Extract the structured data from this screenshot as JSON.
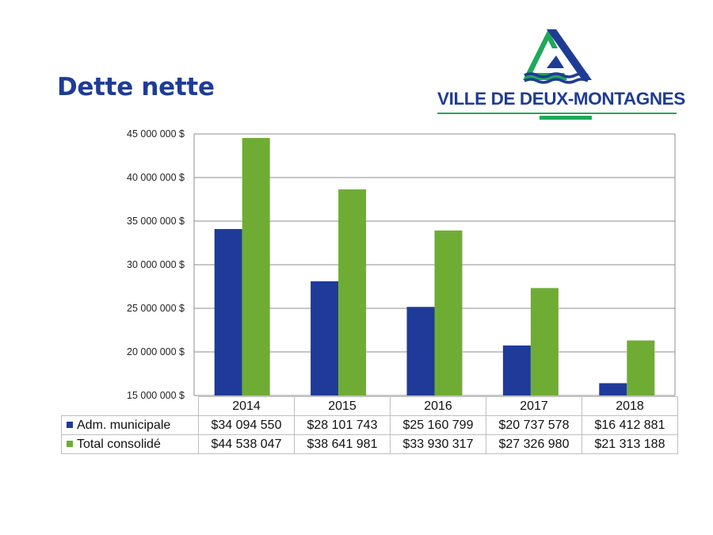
{
  "slide": {
    "title": "Dette nette"
  },
  "logo": {
    "text": "VILLE DE DEUX-MONTAGNES"
  },
  "colors": {
    "title": "#1f3c95",
    "series1": "#1f3a99",
    "series2": "#6fac34",
    "logo_green": "#1fa85a",
    "logo_blue": "#1f3c95"
  },
  "chart_data": {
    "type": "bar",
    "title": "",
    "xlabel": "",
    "ylabel": "",
    "categories": [
      "2014",
      "2015",
      "2016",
      "2017",
      "2018"
    ],
    "series": [
      {
        "name": "Adm. municipale",
        "values": [
          34094550,
          28101743,
          25160799,
          20737578,
          16412881
        ],
        "labels": [
          "$34 094 550",
          "$28 101 743",
          "$25 160 799",
          "$20 737 578",
          "$16 412 881"
        ],
        "color": "#1f3a99"
      },
      {
        "name": "Total consolidé",
        "values": [
          44538047,
          38641981,
          33930317,
          27326980,
          21313188
        ],
        "labels": [
          "$44 538 047",
          "$38 641 981",
          "$33 930 317",
          "$27 326 980",
          "$21 313 188"
        ],
        "color": "#6fac34"
      }
    ],
    "ylim": [
      15000000,
      45000000
    ],
    "yticks": [
      15000000,
      20000000,
      25000000,
      30000000,
      35000000,
      40000000,
      45000000
    ],
    "ytick_labels": [
      "15 000 000 $",
      "20 000 000 $",
      "25 000 000 $",
      "30 000 000 $",
      "35 000 000 $",
      "40 000 000 $",
      "45 000 000 $"
    ],
    "grid": true,
    "legend": "data-table"
  }
}
